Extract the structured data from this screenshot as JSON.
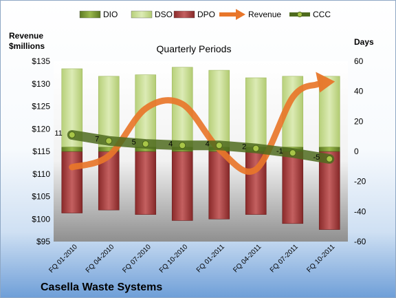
{
  "footer": {
    "company": "Casella Waste Systems"
  },
  "chart_data": {
    "type": "bar",
    "title": "Quarterly Periods",
    "left_axis_title": "Revenue\n$millions",
    "right_axis_title": "Days",
    "categories": [
      "FQ 01-2010",
      "FQ 04-2010",
      "FQ 07-2010",
      "FQ 10-2010",
      "FQ 01-2011",
      "FQ 04-2011",
      "FQ 07-2011",
      "FQ 10-2011"
    ],
    "left_axis": {
      "min": 95,
      "max": 135,
      "step": 5,
      "ticks": [
        "$95",
        "$100",
        "$105",
        "$110",
        "$115",
        "$120",
        "$125",
        "$130",
        "$135"
      ]
    },
    "right_axis": {
      "min": -60,
      "max": 60,
      "step": 20,
      "ticks": [
        "-60",
        "-40",
        "-20",
        "0",
        "20",
        "40",
        "60"
      ]
    },
    "legend_position": "top",
    "legend": [
      "DIO",
      "DSO",
      "DPO",
      "Revenue",
      "CCC"
    ],
    "colors": {
      "DIO": "#6f8f2a",
      "DSO": "#c6dc8e",
      "DPO": "#a33a3a",
      "Revenue": "#e67a2e",
      "CCC": "#4f6b1e"
    },
    "series": [
      {
        "name": "DIO",
        "axis": "right",
        "values": [
          3,
          3,
          3,
          3,
          3,
          3,
          3,
          3
        ]
      },
      {
        "name": "DSO",
        "axis": "right",
        "values": [
          52,
          47,
          48,
          53,
          51,
          46,
          47,
          47
        ]
      },
      {
        "name": "DPO",
        "axis": "right",
        "values": [
          -41,
          -39,
          -42,
          -46,
          -45,
          -42,
          -48,
          -52
        ]
      },
      {
        "name": "Revenue",
        "axis": "left",
        "values": [
          111.5,
          114.0,
          124.5,
          125.5,
          115.5,
          111.0,
          127.0,
          130.5
        ]
      },
      {
        "name": "CCC",
        "axis": "right",
        "values": [
          11,
          7,
          5,
          4,
          4,
          2,
          -1,
          -5
        ]
      }
    ],
    "ccc_labels": [
      "11",
      "7",
      "5",
      "4",
      "4",
      "2",
      "-1",
      "-5"
    ]
  }
}
